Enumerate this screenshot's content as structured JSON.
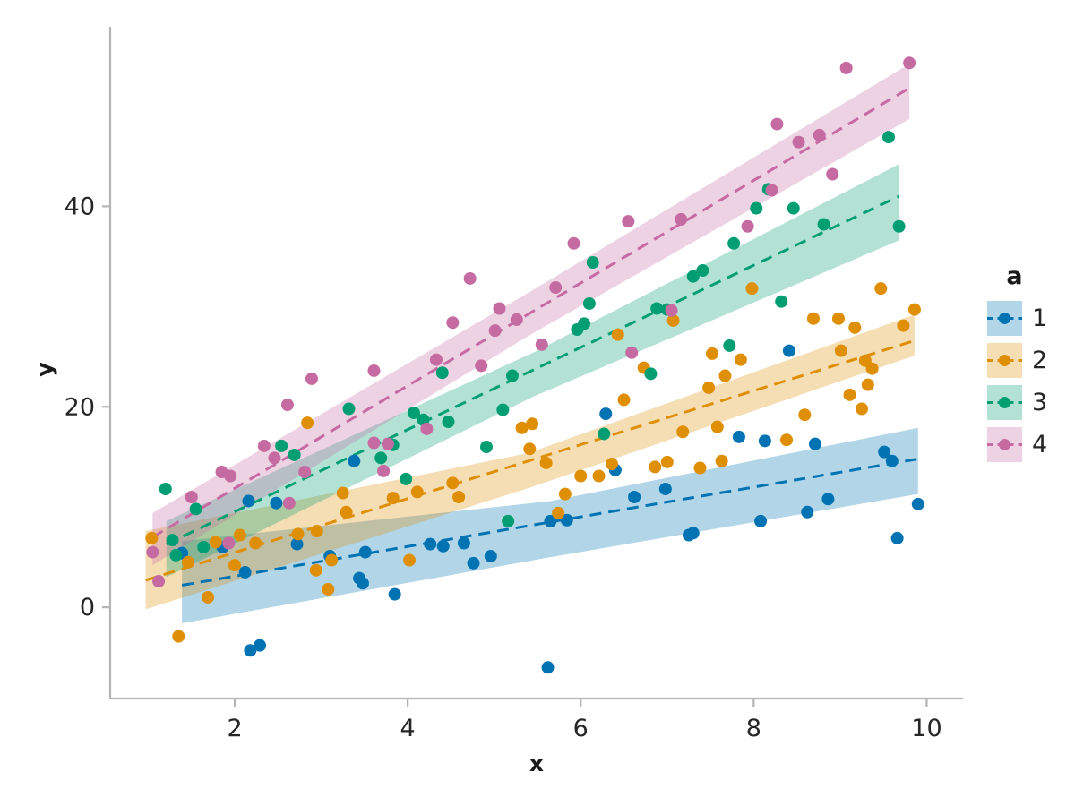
{
  "chart_data": {
    "type": "scatter",
    "subtype": "scatter-with-linear-fit-and-confidence-band",
    "title": "",
    "xlabel": "x",
    "ylabel": "y",
    "legend": {
      "title": "a",
      "position": "right-center",
      "entries": [
        "1",
        "2",
        "3",
        "4"
      ]
    },
    "axes": {
      "xlim": [
        0.56,
        10.42
      ],
      "ylim": [
        -9.1,
        57.9
      ],
      "xticks": [
        2,
        4,
        6,
        8,
        10
      ],
      "yticks": [
        0,
        20,
        40
      ],
      "grid": false,
      "spines": [
        "left",
        "bottom"
      ]
    },
    "style": {
      "spine_color": "#b4b4b4",
      "tick_color": "#b4b4b4",
      "tick_label_color": "#262626",
      "band_opacity": 0.3,
      "point_radius": 7,
      "line_dash": "13 8",
      "line_width": 3
    },
    "series": [
      {
        "name": "1",
        "color": "#0173b2",
        "fit_line": {
          "x": [
            1.39,
            9.9
          ],
          "y": [
            2.2,
            14.8
          ]
        },
        "ci_band": {
          "x": [
            1.39,
            5.65,
            9.9
          ],
          "upper": [
            6.6,
            10.6,
            17.9
          ],
          "lower": [
            -1.6,
            5.0,
            11.3
          ]
        },
        "points": [
          [
            1.39,
            5.4
          ],
          [
            1.86,
            6.0
          ],
          [
            2.12,
            3.5
          ],
          [
            2.16,
            10.6
          ],
          [
            2.18,
            -4.3
          ],
          [
            2.29,
            -3.8
          ],
          [
            2.48,
            10.4
          ],
          [
            2.72,
            6.3
          ],
          [
            3.1,
            5.1
          ],
          [
            3.38,
            14.6
          ],
          [
            3.44,
            2.9
          ],
          [
            3.48,
            2.4
          ],
          [
            3.51,
            5.5
          ],
          [
            3.85,
            1.3
          ],
          [
            4.26,
            6.3
          ],
          [
            4.41,
            6.1
          ],
          [
            4.65,
            6.4
          ],
          [
            4.76,
            4.4
          ],
          [
            4.96,
            5.1
          ],
          [
            5.62,
            -6.0
          ],
          [
            5.65,
            8.6
          ],
          [
            5.84,
            8.7
          ],
          [
            6.29,
            19.3
          ],
          [
            6.4,
            13.7
          ],
          [
            6.62,
            11.0
          ],
          [
            6.98,
            11.8
          ],
          [
            7.25,
            7.2
          ],
          [
            7.3,
            7.4
          ],
          [
            7.83,
            17.0
          ],
          [
            8.08,
            8.6
          ],
          [
            8.13,
            16.6
          ],
          [
            8.41,
            25.6
          ],
          [
            8.62,
            9.5
          ],
          [
            8.71,
            16.3
          ],
          [
            8.86,
            10.8
          ],
          [
            9.51,
            15.5
          ],
          [
            9.6,
            14.6
          ],
          [
            9.66,
            6.9
          ],
          [
            9.9,
            10.3
          ]
        ]
      },
      {
        "name": "2",
        "color": "#de8f05",
        "fit_line": {
          "x": [
            0.97,
            9.86
          ],
          "y": [
            2.7,
            26.6
          ]
        },
        "ci_band": {
          "x": [
            0.97,
            5.4,
            9.86
          ],
          "upper": [
            7.6,
            15.4,
            29.2
          ],
          "lower": [
            -0.2,
            11.9,
            25.1
          ]
        },
        "points": [
          [
            1.04,
            6.9
          ],
          [
            1.35,
            -2.9
          ],
          [
            1.46,
            4.5
          ],
          [
            1.69,
            1.0
          ],
          [
            1.78,
            6.5
          ],
          [
            2.0,
            4.2
          ],
          [
            2.06,
            7.2
          ],
          [
            2.24,
            6.4
          ],
          [
            2.73,
            7.3
          ],
          [
            2.84,
            18.4
          ],
          [
            2.94,
            3.7
          ],
          [
            2.95,
            7.6
          ],
          [
            3.08,
            1.8
          ],
          [
            3.12,
            4.7
          ],
          [
            3.25,
            11.4
          ],
          [
            3.29,
            9.5
          ],
          [
            3.83,
            10.9
          ],
          [
            4.02,
            4.7
          ],
          [
            4.11,
            11.5
          ],
          [
            4.52,
            12.4
          ],
          [
            4.59,
            11.0
          ],
          [
            5.32,
            17.9
          ],
          [
            5.41,
            15.8
          ],
          [
            5.44,
            18.3
          ],
          [
            5.6,
            14.4
          ],
          [
            5.74,
            9.4
          ],
          [
            5.82,
            11.3
          ],
          [
            6.0,
            13.1
          ],
          [
            6.21,
            13.1
          ],
          [
            6.36,
            14.3
          ],
          [
            6.43,
            27.2
          ],
          [
            6.5,
            20.7
          ],
          [
            6.73,
            23.9
          ],
          [
            6.86,
            14.0
          ],
          [
            7.0,
            14.5
          ],
          [
            7.07,
            28.6
          ],
          [
            7.18,
            17.5
          ],
          [
            7.38,
            13.9
          ],
          [
            7.48,
            21.9
          ],
          [
            7.52,
            25.3
          ],
          [
            7.58,
            18.0
          ],
          [
            7.63,
            14.6
          ],
          [
            7.67,
            23.1
          ],
          [
            7.85,
            24.7
          ],
          [
            7.98,
            31.8
          ],
          [
            8.38,
            16.7
          ],
          [
            8.59,
            19.2
          ],
          [
            8.69,
            28.8
          ],
          [
            8.98,
            28.8
          ],
          [
            9.01,
            25.6
          ],
          [
            9.11,
            21.2
          ],
          [
            9.17,
            27.9
          ],
          [
            9.25,
            19.8
          ],
          [
            9.29,
            24.6
          ],
          [
            9.32,
            22.2
          ],
          [
            9.37,
            23.8
          ],
          [
            9.47,
            31.8
          ],
          [
            9.73,
            28.1
          ],
          [
            9.86,
            29.7
          ]
        ]
      },
      {
        "name": "3",
        "color": "#029e73",
        "fit_line": {
          "x": [
            1.21,
            9.68
          ],
          "y": [
            6.3,
            41.0
          ]
        },
        "ci_band": {
          "x": [
            1.21,
            5.45,
            9.68
          ],
          "upper": [
            8.6,
            25.4,
            44.2
          ],
          "lower": [
            3.0,
            21.0,
            36.6
          ]
        },
        "points": [
          [
            1.2,
            11.8
          ],
          [
            1.28,
            6.7
          ],
          [
            1.32,
            5.2
          ],
          [
            1.55,
            9.8
          ],
          [
            1.64,
            6.0
          ],
          [
            2.54,
            16.1
          ],
          [
            2.69,
            15.2
          ],
          [
            3.32,
            19.8
          ],
          [
            3.69,
            14.9
          ],
          [
            3.83,
            16.2
          ],
          [
            3.98,
            12.8
          ],
          [
            4.07,
            19.4
          ],
          [
            4.18,
            18.7
          ],
          [
            4.4,
            23.4
          ],
          [
            4.47,
            18.5
          ],
          [
            4.91,
            16.0
          ],
          [
            5.1,
            19.7
          ],
          [
            5.16,
            8.6
          ],
          [
            5.21,
            23.1
          ],
          [
            5.96,
            27.7
          ],
          [
            6.04,
            28.3
          ],
          [
            6.1,
            30.3
          ],
          [
            6.14,
            34.4
          ],
          [
            6.27,
            17.3
          ],
          [
            6.81,
            23.3
          ],
          [
            6.88,
            29.8
          ],
          [
            7.0,
            29.7
          ],
          [
            7.3,
            33.0
          ],
          [
            7.41,
            33.6
          ],
          [
            7.72,
            26.1
          ],
          [
            7.77,
            36.3
          ],
          [
            8.03,
            39.8
          ],
          [
            8.17,
            41.7
          ],
          [
            8.32,
            30.5
          ],
          [
            8.46,
            39.8
          ],
          [
            8.81,
            38.2
          ],
          [
            9.56,
            46.9
          ],
          [
            9.68,
            38.0
          ]
        ]
      },
      {
        "name": "4",
        "color": "#c56ba2",
        "fit_line": {
          "x": [
            1.05,
            9.8
          ],
          "y": [
            7.0,
            51.8
          ]
        },
        "ci_band": {
          "x": [
            1.05,
            5.4,
            9.8
          ],
          "upper": [
            9.4,
            31.4,
            54.2
          ],
          "lower": [
            4.2,
            27.1,
            48.7
          ]
        },
        "points": [
          [
            1.05,
            5.5
          ],
          [
            1.12,
            2.6
          ],
          [
            1.5,
            11.0
          ],
          [
            1.85,
            13.5
          ],
          [
            1.93,
            6.4
          ],
          [
            1.95,
            13.1
          ],
          [
            2.34,
            16.1
          ],
          [
            2.46,
            14.9
          ],
          [
            2.61,
            20.2
          ],
          [
            2.63,
            10.4
          ],
          [
            2.81,
            13.5
          ],
          [
            2.89,
            22.8
          ],
          [
            3.61,
            23.6
          ],
          [
            3.61,
            16.4
          ],
          [
            3.72,
            13.6
          ],
          [
            3.77,
            16.3
          ],
          [
            4.22,
            17.8
          ],
          [
            4.33,
            24.7
          ],
          [
            4.52,
            28.4
          ],
          [
            4.72,
            32.8
          ],
          [
            4.85,
            24.1
          ],
          [
            5.01,
            27.6
          ],
          [
            5.06,
            29.8
          ],
          [
            5.26,
            28.7
          ],
          [
            5.55,
            26.2
          ],
          [
            5.71,
            31.9
          ],
          [
            5.92,
            36.3
          ],
          [
            6.55,
            38.5
          ],
          [
            6.59,
            25.4
          ],
          [
            7.05,
            29.6
          ],
          [
            7.16,
            38.7
          ],
          [
            7.93,
            38.0
          ],
          [
            8.21,
            41.6
          ],
          [
            8.27,
            48.2
          ],
          [
            8.52,
            46.4
          ],
          [
            8.76,
            47.1
          ],
          [
            8.91,
            43.2
          ],
          [
            9.07,
            53.8
          ],
          [
            9.8,
            54.3
          ]
        ]
      }
    ]
  }
}
